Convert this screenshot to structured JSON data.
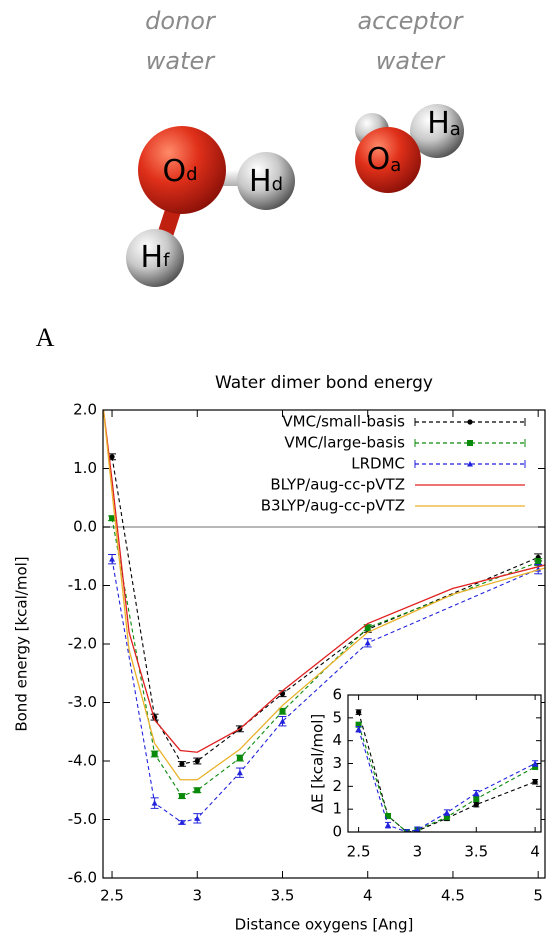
{
  "illustration": {
    "donor_label": [
      "donor",
      "water"
    ],
    "acceptor_label": [
      "acceptor",
      "water"
    ],
    "atoms": [
      {
        "symbol": "O",
        "subscript": "d"
      },
      {
        "symbol": "H",
        "subscript": "d"
      },
      {
        "symbol": "H",
        "subscript": "f"
      },
      {
        "symbol": "O",
        "subscript": "a"
      },
      {
        "symbol": "H",
        "subscript": "a"
      }
    ],
    "panel_label": "A"
  },
  "chart_data": [
    {
      "type": "line",
      "title": "Water dimer bond energy",
      "x_label": "Distance oxygens [Ang]",
      "y_label": "Bond energy [kcal/mol]",
      "xlim": [
        2.447,
        5.04
      ],
      "ylim": [
        -6,
        2
      ],
      "xticks": [
        2.5,
        3,
        3.5,
        4,
        4.5,
        5
      ],
      "yticks": [
        {
          "value": 2,
          "label": "2.0"
        },
        {
          "value": 1,
          "label": "1.0"
        },
        {
          "value": 0,
          "label": "0.0"
        },
        {
          "value": -1,
          "label": "-1.0"
        },
        {
          "value": -2,
          "label": "-2.0"
        },
        {
          "value": -3,
          "label": "-3.0"
        },
        {
          "value": -4,
          "label": "-4.0"
        },
        {
          "value": -5,
          "label": "-5.0"
        },
        {
          "value": -6,
          "label": "-6.0"
        }
      ],
      "zero_line": true,
      "legend": "top-right",
      "series": [
        {
          "name": "VMC/small-basis",
          "color": "#000000",
          "marker": "circle",
          "dashed": true,
          "x": [
            2.5,
            2.75,
            2.91,
            3.0,
            3.25,
            3.5,
            4.0,
            5.0
          ],
          "values": [
            1.2,
            -3.25,
            -4.05,
            -4.0,
            -3.45,
            -2.85,
            -1.75,
            -0.52
          ],
          "errors": [
            0.05,
            0.05,
            0.04,
            0.05,
            0.05,
            0.05,
            0.05,
            0.06
          ]
        },
        {
          "name": "VMC/large-basis",
          "color": "#0a8a0a",
          "marker": "square",
          "dashed": true,
          "x": [
            2.5,
            2.75,
            2.91,
            3.0,
            3.25,
            3.5,
            4.0,
            5.0
          ],
          "values": [
            0.15,
            -3.88,
            -4.6,
            -4.5,
            -3.95,
            -3.15,
            -1.72,
            -0.6
          ],
          "errors": [
            0.04,
            0.05,
            0.04,
            0.04,
            0.05,
            0.05,
            0.05,
            0.06
          ]
        },
        {
          "name": "LRDMC",
          "color": "#2222dd",
          "marker": "triangle",
          "dashed": true,
          "x": [
            2.5,
            2.75,
            2.91,
            3.0,
            3.25,
            3.5,
            4.0,
            5.0
          ],
          "values": [
            -0.55,
            -4.72,
            -5.05,
            -4.98,
            -4.2,
            -3.32,
            -1.98,
            -0.72
          ],
          "errors": [
            0.08,
            0.09,
            0.03,
            0.08,
            0.08,
            0.08,
            0.07,
            0.08
          ]
        },
        {
          "name": "BLYP/aug-cc-pVTZ",
          "color": "#e02020",
          "marker": "none",
          "dashed": false,
          "x": [
            2.45,
            2.5,
            2.6,
            2.75,
            2.9,
            3.0,
            3.25,
            3.5,
            4.0,
            4.5,
            5.04
          ],
          "values": [
            2.0,
            0.8,
            -1.8,
            -3.3,
            -3.82,
            -3.85,
            -3.45,
            -2.8,
            -1.65,
            -1.05,
            -0.65
          ]
        },
        {
          "name": "B3LYP/aug-cc-pVTZ",
          "color": "#eab12a",
          "marker": "none",
          "dashed": false,
          "x": [
            2.45,
            2.5,
            2.6,
            2.75,
            2.9,
            3.0,
            3.25,
            3.5,
            4.0,
            4.5,
            5.04
          ],
          "values": [
            2.0,
            0.6,
            -2.1,
            -3.7,
            -4.32,
            -4.32,
            -3.8,
            -3.05,
            -1.8,
            -1.15,
            -0.7
          ]
        }
      ]
    },
    {
      "type": "line",
      "y_label": "ΔE [kcal/mol]",
      "xlim": [
        2.41,
        4.05
      ],
      "ylim": [
        0,
        6
      ],
      "xticks": [
        2.5,
        3,
        3.5,
        4
      ],
      "yticks": [
        0,
        1,
        2,
        3,
        4,
        5,
        6
      ],
      "series": [
        {
          "color": "#000000",
          "marker": "circle",
          "dashed": true,
          "x": [
            2.5,
            2.75,
            2.91,
            3.0,
            3.25,
            3.5,
            4.0
          ],
          "values": [
            5.25,
            0.7,
            0.0,
            0.05,
            0.6,
            1.2,
            2.2
          ],
          "errors": [
            0.1,
            0.1,
            0.08,
            0.1,
            0.1,
            0.1,
            0.1
          ]
        },
        {
          "color": "#0a8a0a",
          "marker": "square",
          "dashed": true,
          "x": [
            2.5,
            2.75,
            2.91,
            3.0,
            3.25,
            3.5,
            4.0
          ],
          "values": [
            4.7,
            0.7,
            0.0,
            0.1,
            0.65,
            1.45,
            2.85
          ],
          "errors": [
            0.1,
            0.1,
            0.08,
            0.1,
            0.1,
            0.1,
            0.1
          ]
        },
        {
          "color": "#2222dd",
          "marker": "triangle",
          "dashed": true,
          "x": [
            2.5,
            2.75,
            2.91,
            3.0,
            3.25,
            3.5,
            4.0
          ],
          "values": [
            4.5,
            0.3,
            0.0,
            0.1,
            0.85,
            1.7,
            3.0
          ],
          "errors": [
            0.12,
            0.12,
            0.1,
            0.12,
            0.12,
            0.12,
            0.12
          ]
        }
      ]
    }
  ]
}
